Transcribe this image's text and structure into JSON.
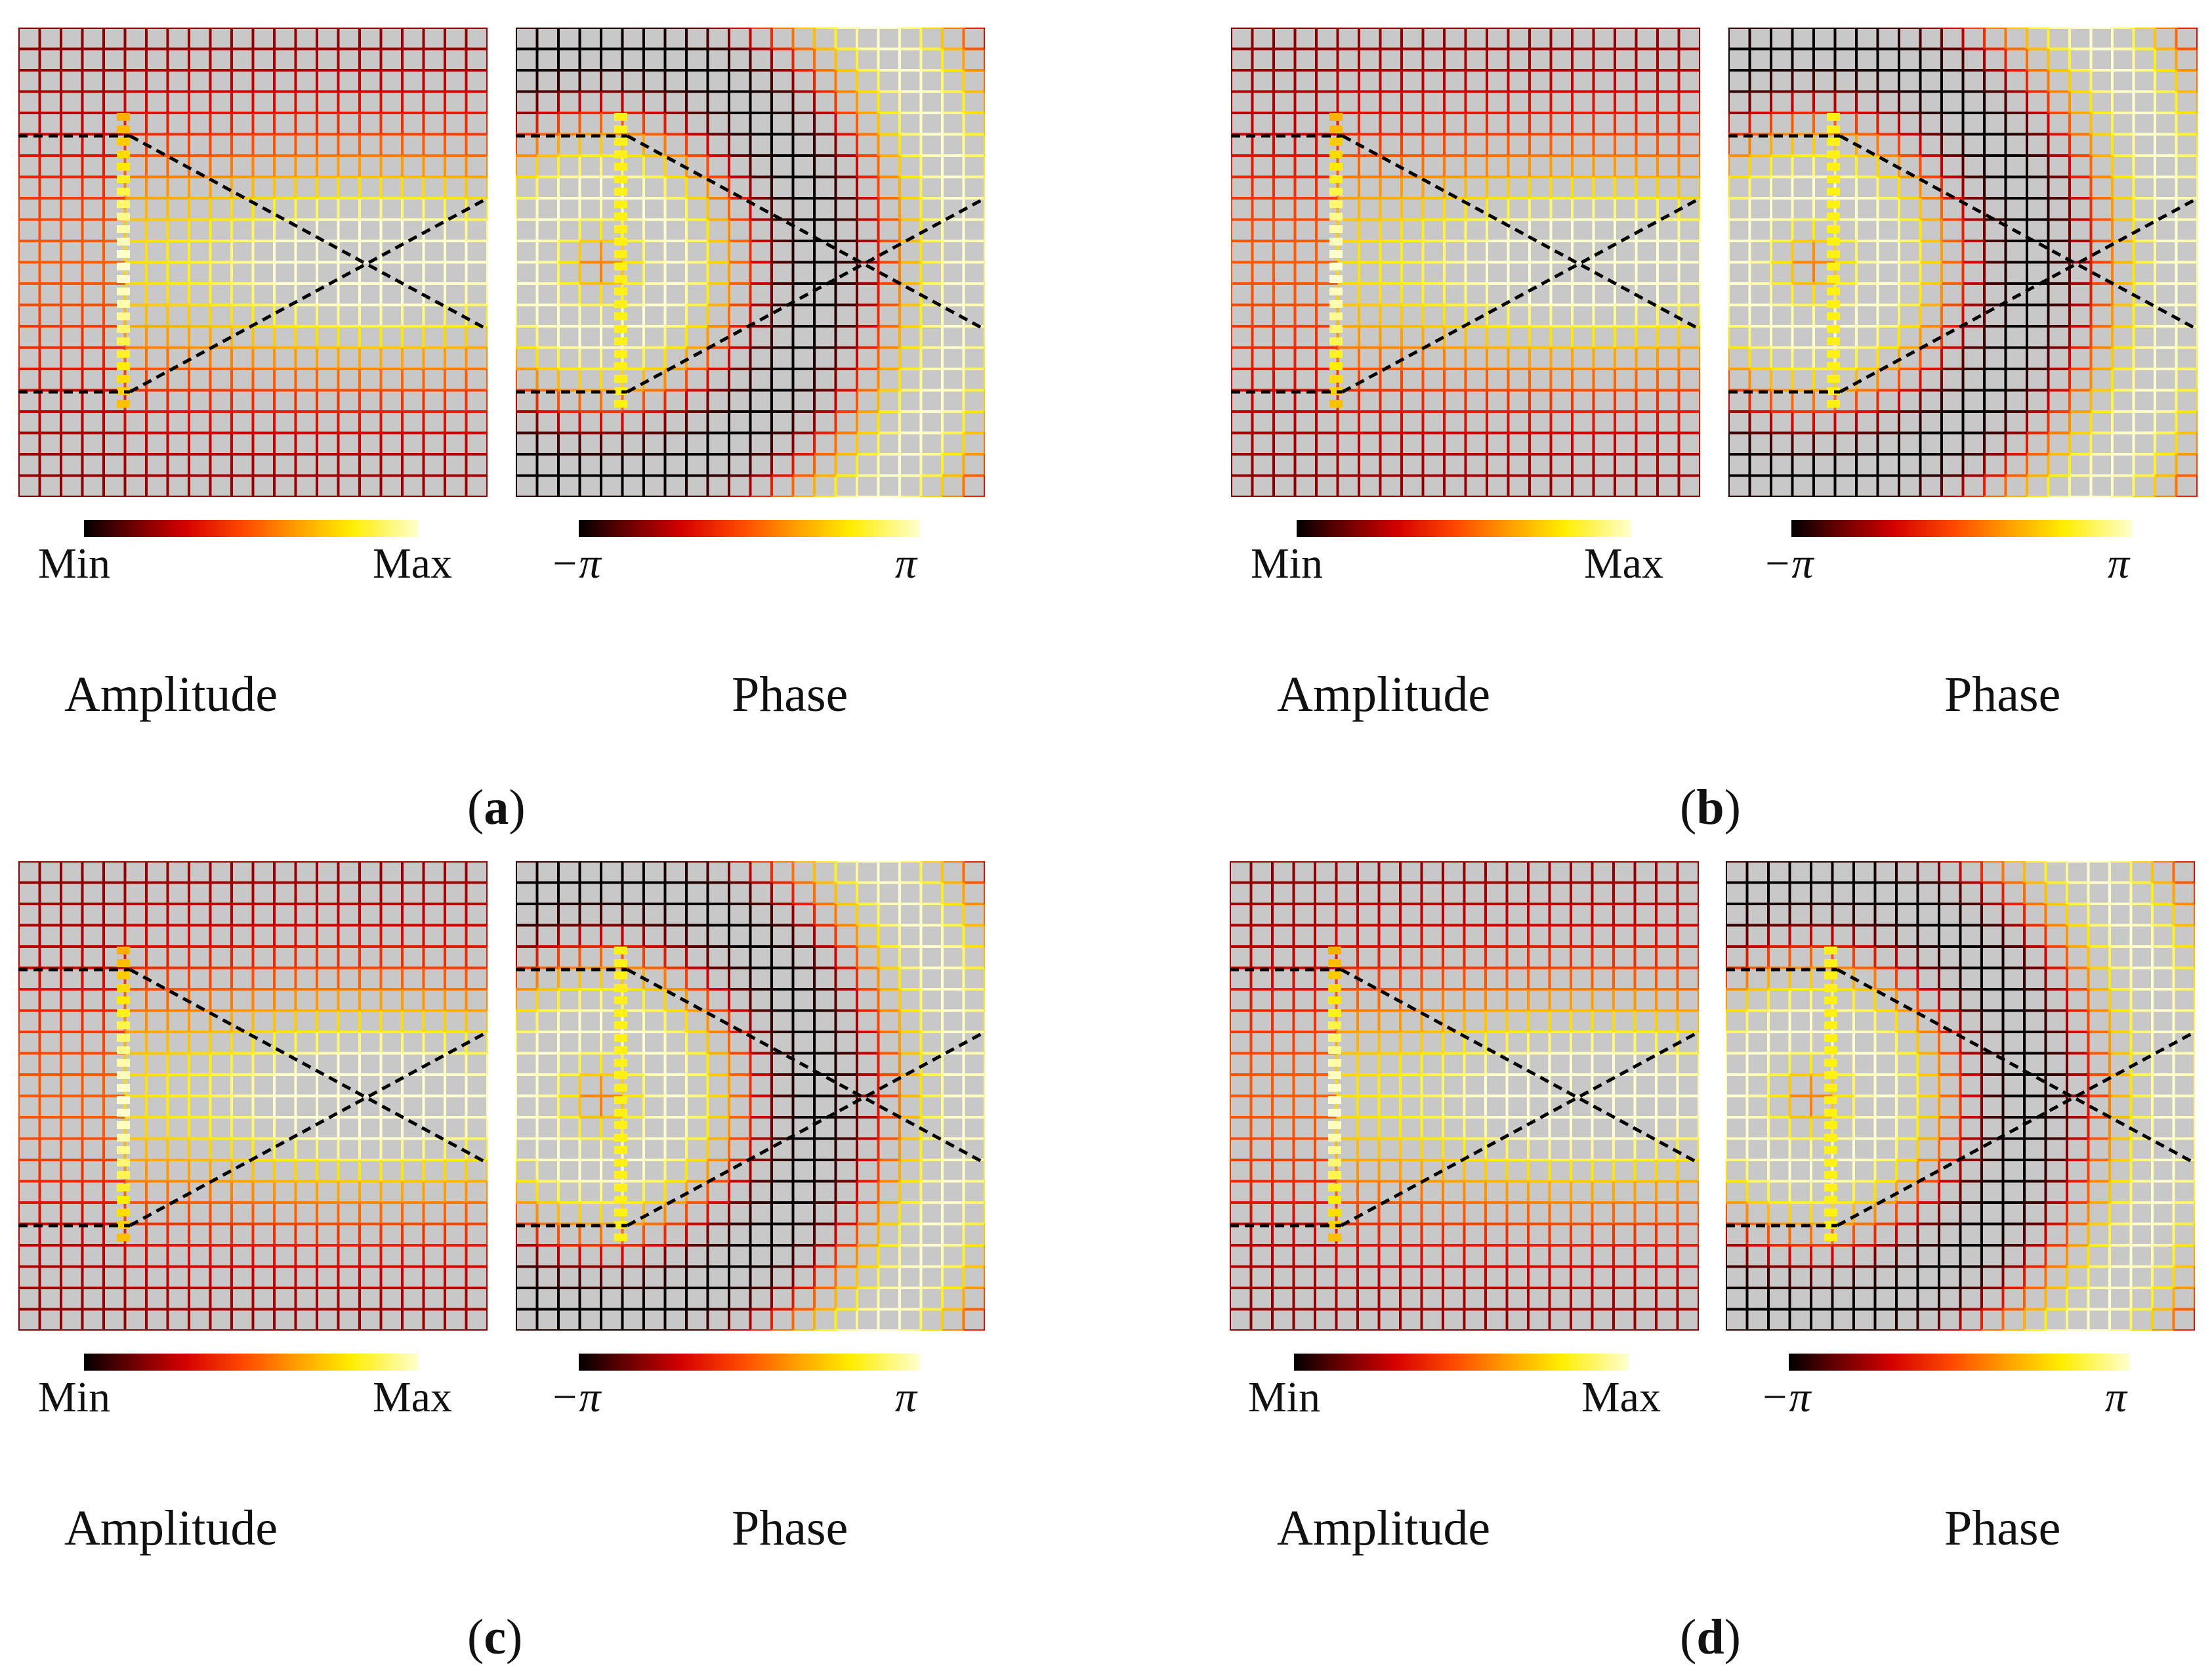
{
  "figure": {
    "panels": [
      {
        "id": "a",
        "caption_open": "(",
        "caption_letter": "a",
        "caption_close": ")",
        "amplitude": {
          "title": "Amplitude",
          "cbar_min": "Min",
          "cbar_max": "Max"
        },
        "phase": {
          "title": "Phase",
          "cbar_min": "−π",
          "cbar_max": "π"
        }
      },
      {
        "id": "b",
        "caption_open": "(",
        "caption_letter": "b",
        "caption_close": ")",
        "amplitude": {
          "title": "Amplitude",
          "cbar_min": "Min",
          "cbar_max": "Max"
        },
        "phase": {
          "title": "Phase",
          "cbar_min": "−π",
          "cbar_max": "π"
        }
      },
      {
        "id": "c",
        "caption_open": "(",
        "caption_letter": "c",
        "caption_close": ")",
        "amplitude": {
          "title": "Amplitude",
          "cbar_min": "Min",
          "cbar_max": "Max"
        },
        "phase": {
          "title": "Phase",
          "cbar_min": "−π",
          "cbar_max": "π"
        }
      },
      {
        "id": "d",
        "caption_open": "(",
        "caption_letter": "d",
        "caption_close": ")",
        "amplitude": {
          "title": "Amplitude",
          "cbar_min": "Min",
          "cbar_max": "Max"
        },
        "phase": {
          "title": "Phase",
          "cbar_min": "−π",
          "cbar_max": "π"
        }
      }
    ],
    "colors": {
      "map_background": "#c8c8c8",
      "guide_lines": "#000000",
      "colormap": [
        "#000000",
        "#5a0000",
        "#d40000",
        "#ff4a00",
        "#ffa000",
        "#ffee00",
        "#ffffd0"
      ]
    }
  }
}
